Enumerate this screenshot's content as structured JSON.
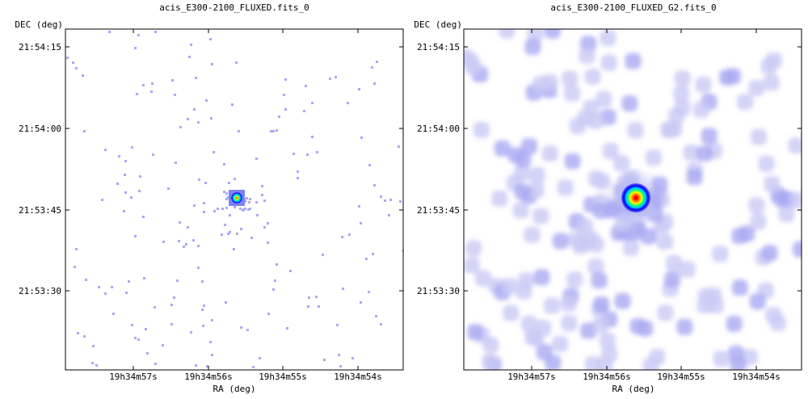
{
  "colors": {
    "frame": "#000000",
    "blob": "#a9a9f2",
    "blob_soft": "#c9c9f5",
    "colormap": [
      "#a9a9f2",
      "#6060ff",
      "#0000ff",
      "#00c8ff",
      "#00ff80",
      "#ffff00",
      "#ff8000",
      "#ff0000",
      "#a00000"
    ]
  },
  "chart_data": [
    {
      "type": "heatmap",
      "title": "acis_E300-2100_FLUXED.fits_0",
      "xlabel": "RA (deg)",
      "ylabel": "DEC (deg)",
      "x_ticks": [
        "19h34m57s",
        "19h34m56s",
        "19h34m55s",
        "19h34m54s"
      ],
      "y_ticks": [
        "21:54:15",
        "21:54:00",
        "21:53:45",
        "21:53:30"
      ],
      "grid": false,
      "source": {
        "ra": "19h34m55.7s",
        "dec": "21:53:47",
        "peak_color": "red"
      },
      "rendering": "sparse photon-count pixels"
    },
    {
      "type": "heatmap",
      "title": "acis_E300-2100_FLUXED_G2.fits_0",
      "xlabel": "RA (deg)",
      "ylabel": "DEC (deg)",
      "x_ticks": [
        "19h34m57s",
        "19h34m56s",
        "19h34m55s",
        "19h34m54s"
      ],
      "y_ticks": [
        "21:54:15",
        "21:54:00",
        "21:53:45",
        "21:53:30"
      ],
      "grid": false,
      "source": {
        "ra": "19h34m55.7s",
        "dec": "21:53:47",
        "peak_color": "dark red"
      },
      "rendering": "gaussian-smoothed (sigma 2)"
    }
  ]
}
